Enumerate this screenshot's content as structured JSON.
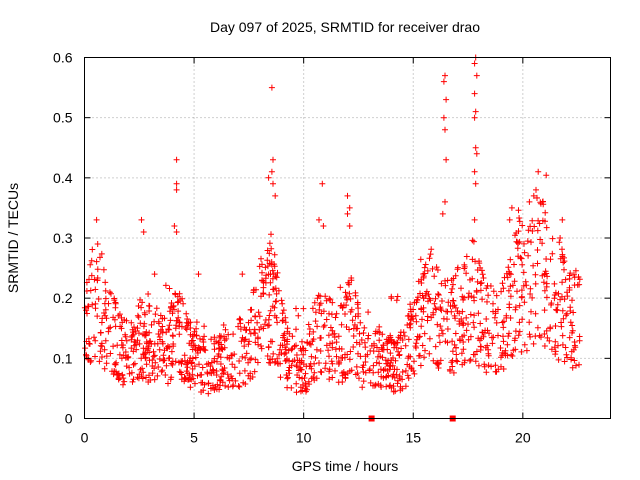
{
  "chart_data": {
    "type": "scatter",
    "title": "Day 097 of 2025, SRMTID for receiver drao",
    "xlabel": "GPS time / hours",
    "ylabel": "SRMTID / TECUs",
    "xlim": [
      0,
      24
    ],
    "ylim": [
      0,
      0.6
    ],
    "x_ticks": [
      0,
      5,
      10,
      15,
      20
    ],
    "y_ticks": [
      0,
      0.1,
      0.2,
      0.3,
      0.4,
      0.5,
      0.6
    ],
    "x_tick_labels": [
      "0",
      "5",
      "10",
      "15",
      "20"
    ],
    "y_tick_labels": [
      "0",
      "0.1",
      "0.2",
      "0.3",
      "0.4",
      "0.5",
      "0.6"
    ],
    "grid": true,
    "marker": "plus",
    "color": "#ff0000",
    "profile": [
      [
        0.0,
        0.15
      ],
      [
        0.3,
        0.19
      ],
      [
        0.6,
        0.22
      ],
      [
        1.0,
        0.16
      ],
      [
        1.5,
        0.13
      ],
      [
        2.0,
        0.11
      ],
      [
        2.6,
        0.14
      ],
      [
        3.2,
        0.13
      ],
      [
        3.7,
        0.12
      ],
      [
        4.2,
        0.16
      ],
      [
        4.7,
        0.12
      ],
      [
        5.2,
        0.1
      ],
      [
        5.7,
        0.09
      ],
      [
        6.3,
        0.1
      ],
      [
        6.8,
        0.11
      ],
      [
        7.3,
        0.12
      ],
      [
        7.8,
        0.16
      ],
      [
        8.3,
        0.21
      ],
      [
        8.7,
        0.19
      ],
      [
        9.2,
        0.11
      ],
      [
        9.7,
        0.09
      ],
      [
        10.2,
        0.1
      ],
      [
        10.7,
        0.16
      ],
      [
        11.2,
        0.14
      ],
      [
        11.7,
        0.13
      ],
      [
        12.2,
        0.17
      ],
      [
        12.7,
        0.11
      ],
      [
        13.2,
        0.1
      ],
      [
        13.7,
        0.1
      ],
      [
        14.2,
        0.09
      ],
      [
        14.7,
        0.12
      ],
      [
        15.2,
        0.16
      ],
      [
        15.8,
        0.2
      ],
      [
        16.3,
        0.16
      ],
      [
        16.8,
        0.16
      ],
      [
        17.3,
        0.19
      ],
      [
        17.8,
        0.21
      ],
      [
        18.3,
        0.16
      ],
      [
        18.8,
        0.15
      ],
      [
        19.3,
        0.17
      ],
      [
        19.8,
        0.24
      ],
      [
        20.3,
        0.22
      ],
      [
        20.8,
        0.27
      ],
      [
        21.3,
        0.22
      ],
      [
        21.8,
        0.2
      ],
      [
        22.3,
        0.18
      ],
      [
        22.6,
        0.17
      ]
    ],
    "peaks": [
      [
        4.2,
        0.43
      ],
      [
        4.2,
        0.39
      ],
      [
        4.2,
        0.38
      ],
      [
        4.1,
        0.32
      ],
      [
        4.2,
        0.31
      ],
      [
        8.55,
        0.55
      ],
      [
        8.6,
        0.43
      ],
      [
        8.55,
        0.41
      ],
      [
        8.4,
        0.4
      ],
      [
        8.6,
        0.39
      ],
      [
        8.7,
        0.37
      ],
      [
        10.85,
        0.39
      ],
      [
        10.7,
        0.33
      ],
      [
        10.9,
        0.32
      ],
      [
        12.0,
        0.37
      ],
      [
        12.1,
        0.35
      ],
      [
        12.0,
        0.34
      ],
      [
        12.1,
        0.32
      ],
      [
        16.45,
        0.57
      ],
      [
        16.4,
        0.56
      ],
      [
        16.5,
        0.53
      ],
      [
        16.4,
        0.5
      ],
      [
        16.45,
        0.48
      ],
      [
        16.5,
        0.43
      ],
      [
        16.45,
        0.36
      ],
      [
        16.35,
        0.34
      ],
      [
        17.8,
        0.59
      ],
      [
        17.85,
        0.6
      ],
      [
        17.9,
        0.57
      ],
      [
        17.8,
        0.54
      ],
      [
        17.85,
        0.51
      ],
      [
        17.8,
        0.5
      ],
      [
        17.85,
        0.45
      ],
      [
        17.9,
        0.44
      ],
      [
        17.8,
        0.41
      ],
      [
        17.85,
        0.39
      ],
      [
        17.8,
        0.33
      ],
      [
        20.7,
        0.41
      ],
      [
        20.6,
        0.38
      ],
      [
        20.5,
        0.37
      ],
      [
        20.3,
        0.36
      ],
      [
        20.9,
        0.36
      ],
      [
        21.8,
        0.33
      ],
      [
        21.7,
        0.3
      ],
      [
        19.5,
        0.35
      ],
      [
        19.4,
        0.33
      ],
      [
        2.6,
        0.33
      ],
      [
        2.7,
        0.31
      ],
      [
        0.55,
        0.33
      ],
      [
        0.6,
        0.29
      ],
      [
        5.2,
        0.24
      ],
      [
        7.2,
        0.24
      ],
      [
        3.2,
        0.24
      ],
      [
        14.0,
        0.2
      ]
    ],
    "axis_markers": [
      13.1,
      16.8
    ]
  }
}
